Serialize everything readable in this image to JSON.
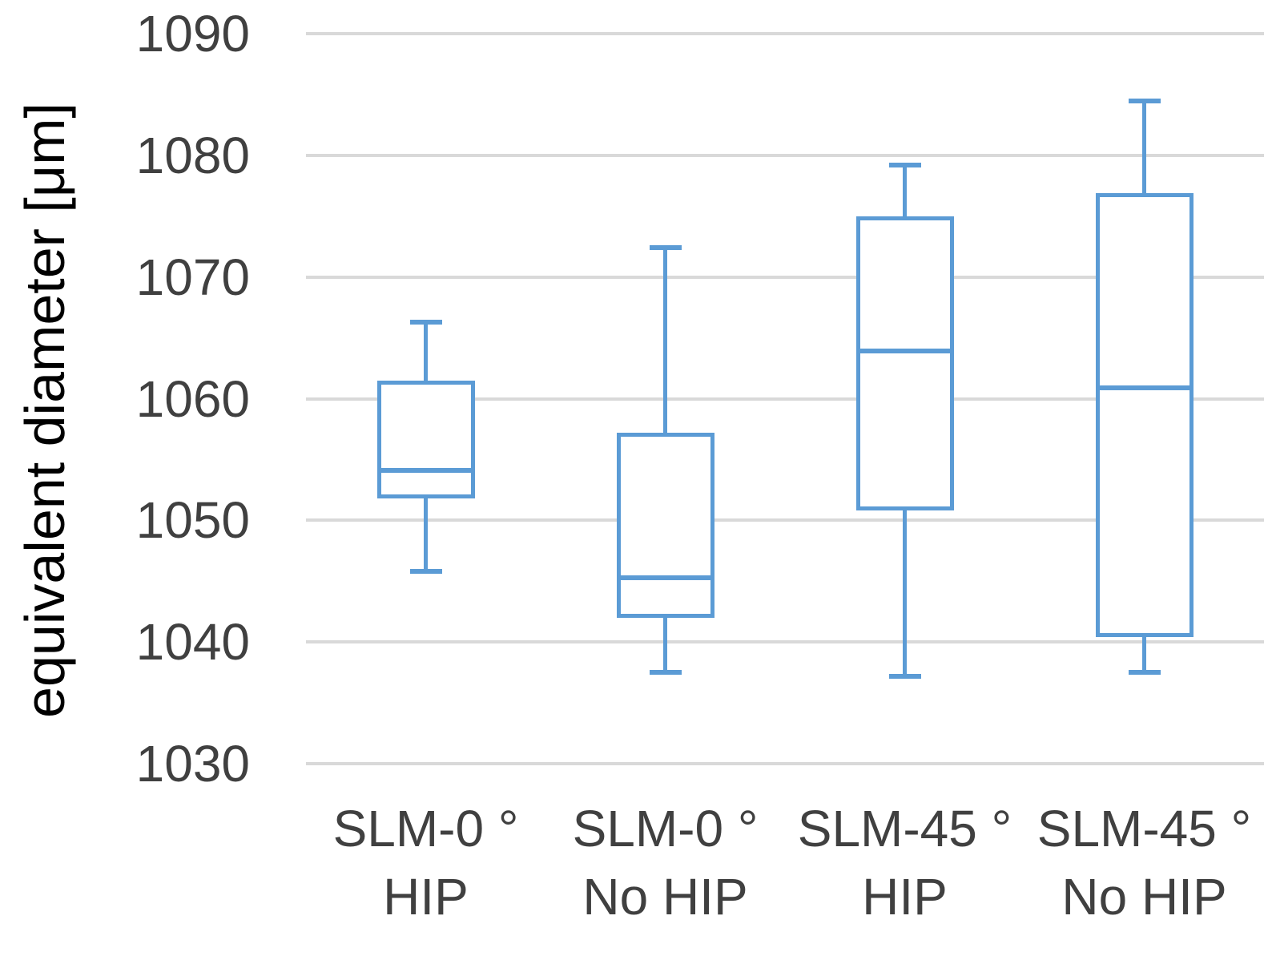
{
  "chart_data": {
    "type": "boxplot",
    "title": "",
    "xlabel": "",
    "ylabel": "equivalent diameter [μm]",
    "ylim": [
      1030,
      1090
    ],
    "yticks": [
      1090,
      1080,
      1070,
      1060,
      1050,
      1040,
      1030
    ],
    "grid": "horizontal-only",
    "legend": "none",
    "categories": [
      {
        "line1": "SLM-0 °",
        "line2": "HIP"
      },
      {
        "line1": "SLM-0 °",
        "line2": "No HIP"
      },
      {
        "line1": "SLM-45 °",
        "line2": "HIP"
      },
      {
        "line1": "SLM-45 °",
        "line2": "No HIP"
      }
    ],
    "series": [
      {
        "name": "SLM-0 ° HIP",
        "whisker_low": 1045.8,
        "q1": 1051.8,
        "median": 1054.1,
        "q3": 1061.5,
        "whisker_high": 1066.3
      },
      {
        "name": "SLM-0 ° No HIP",
        "whisker_low": 1037.5,
        "q1": 1042.0,
        "median": 1045.3,
        "q3": 1057.2,
        "whisker_high": 1072.4
      },
      {
        "name": "SLM-45 ° HIP",
        "whisker_low": 1037.2,
        "q1": 1050.8,
        "median": 1063.9,
        "q3": 1075.0,
        "whisker_high": 1079.2
      },
      {
        "name": "SLM-45 ° No HIP",
        "whisker_low": 1037.5,
        "q1": 1040.4,
        "median": 1060.9,
        "q3": 1076.9,
        "whisker_high": 1084.5
      }
    ],
    "colors": {
      "box_stroke": "#5B9BD5",
      "box_fill": "#FFFFFF",
      "gridline": "#D9D9D9",
      "tick_text": "#404040",
      "category_text": "#404040",
      "axis_title_text": "#000000",
      "background": "#FFFFFF"
    }
  }
}
